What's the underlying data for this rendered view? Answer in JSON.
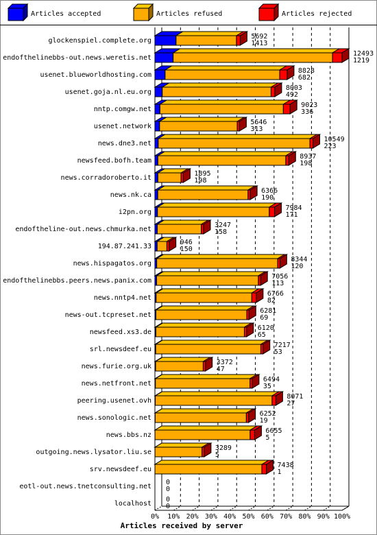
{
  "chart_data": {
    "type": "bar3d-stacked-horizontal",
    "xlabel": "Articles received by server",
    "categories": [
      "glockenspiel.complete.org",
      "endofthelinebbs-out.news.weretis.net",
      "usenet.blueworldhosting.com",
      "usenet.goja.nl.eu.org",
      "nntp.comgw.net",
      "usenet.network",
      "news.dne3.net",
      "newsfeed.bofh.team",
      "news.corradoroberto.it",
      "news.nk.ca",
      "i2pn.org",
      "endoftheline-out.news.chmurka.net",
      "194.87.241.33",
      "news.hispagatos.org",
      "endofthelinebbs.peers.news.panix.com",
      "news.nntp4.net",
      "news-out.tcpreset.net",
      "newsfeed.xs3.de",
      "srl.newsdeef.eu",
      "news.furie.org.uk",
      "news.netfront.net",
      "peering.usenet.ovh",
      "news.sonologic.net",
      "news.bbs.nz",
      "outgoing.news.lysator.liu.se",
      "srv.newsdeef.eu",
      "eotl-out.news.tnetconsulting.net",
      "localhost"
    ],
    "totals": [
      5692,
      12493,
      8828,
      8003,
      9023,
      5646,
      10549,
      8937,
      1895,
      6366,
      7984,
      3247,
      946,
      8344,
      7056,
      6766,
      6281,
      6120,
      7217,
      3372,
      6494,
      8071,
      6252,
      6655,
      3289,
      7438,
      0,
      0
    ],
    "series": [
      {
        "name": "Articles accepted",
        "color": "#0000ff",
        "values": [
          1413,
          1219,
          682,
          492,
          336,
          313,
          223,
          198,
          198,
          190,
          171,
          158,
          150,
          120,
          113,
          82,
          69,
          65,
          53,
          47,
          35,
          27,
          19,
          5,
          5,
          1,
          0,
          0
        ]
      },
      {
        "name": "Articles refused",
        "color": "#ffaa00",
        "values": [
          4029,
          10634,
          7646,
          7261,
          8237,
          5183,
          10126,
          8539,
          1547,
          6026,
          7463,
          2939,
          646,
          8074,
          6793,
          6384,
          6062,
          5905,
          7014,
          3175,
          6309,
          7794,
          6083,
          6350,
          3134,
          7137,
          0,
          0
        ]
      },
      {
        "name": "Articles rejected",
        "color": "#ff0000",
        "values": [
          250,
          640,
          500,
          250,
          450,
          150,
          200,
          200,
          150,
          150,
          350,
          150,
          150,
          150,
          150,
          300,
          150,
          150,
          150,
          150,
          150,
          250,
          150,
          300,
          150,
          300,
          0,
          0
        ]
      }
    ],
    "xlim": [
      0,
      12493
    ],
    "xticks": [
      {
        "value": 0,
        "label": "0%"
      },
      {
        "value": 1249.3,
        "label": "10%"
      },
      {
        "value": 2498.6,
        "label": "20%"
      },
      {
        "value": 3747.9,
        "label": "30%"
      },
      {
        "value": 4997.2,
        "label": "40%"
      },
      {
        "value": 6246.5,
        "label": "50%"
      },
      {
        "value": 7495.8,
        "label": "60%"
      },
      {
        "value": 8745.1,
        "label": "70%"
      },
      {
        "value": 9994.4,
        "label": "80%"
      },
      {
        "value": 11243.7,
        "label": "90%"
      },
      {
        "value": 12493,
        "label": "100%"
      }
    ],
    "grid": true
  }
}
